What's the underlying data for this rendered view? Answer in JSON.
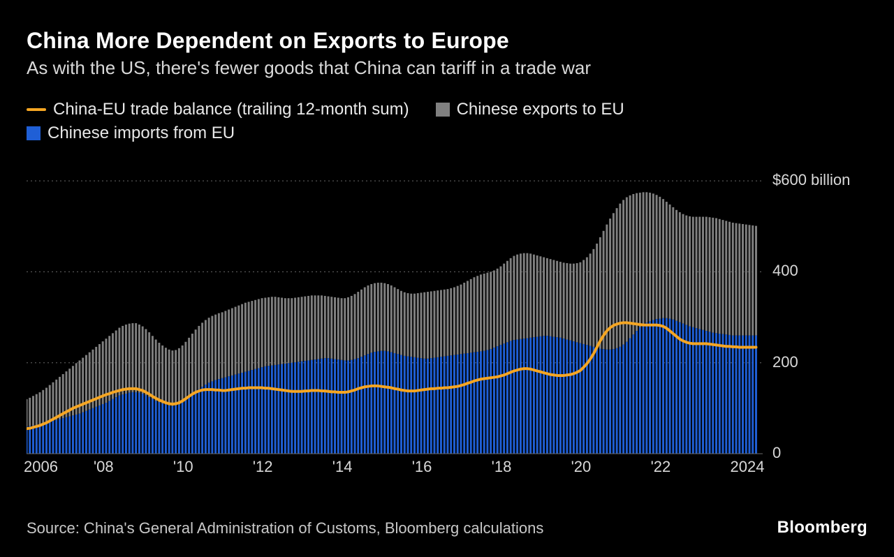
{
  "title": "China More Dependent on Exports to Europe",
  "subtitle": "As with the US, there's fewer goods that China can tariff in a trade war",
  "legend": {
    "balance": "China-EU trade balance (trailing 12-month sum)",
    "exports": "Chinese exports to EU",
    "imports": "Chinese imports from EU"
  },
  "source": "Source: China's General Administration of Customs, Bloomberg calculations",
  "brand": "Bloomberg",
  "chart": {
    "type": "stacked-bar-plus-line",
    "background_color": "#000000",
    "grid_color": "#6a6a6a",
    "grid_dash": "2,4",
    "axis_text_color": "#d9d9d9",
    "font_size_axis": 22,
    "x": {
      "min": 2006.0,
      "max": 2024.5,
      "tick_labels": [
        "2006",
        "'08",
        "'10",
        "'12",
        "'14",
        "'16",
        "'18",
        "'20",
        "'22",
        "2024"
      ],
      "tick_values": [
        2006,
        2008,
        2010,
        2012,
        2014,
        2016,
        2018,
        2020,
        2022,
        2024
      ]
    },
    "y": {
      "min": 0,
      "max": 660,
      "ticks": [
        0,
        200,
        400,
        600
      ],
      "tick_labels": [
        "0",
        "200",
        "400",
        "$600 billion"
      ]
    },
    "series": {
      "imports": {
        "color": "#1f5fd6",
        "step": 0.083333,
        "values": [
          60,
          61,
          62,
          63,
          64,
          66,
          68,
          70,
          72,
          74,
          76,
          78,
          80,
          82,
          84,
          86,
          88,
          91,
          94,
          97,
          100,
          103,
          106,
          109,
          112,
          116,
          120,
          124,
          128,
          130,
          132,
          134,
          135,
          135,
          134,
          132,
          128,
          124,
          120,
          116,
          113,
          110,
          108,
          106,
          105,
          106,
          108,
          112,
          118,
          124,
          130,
          136,
          142,
          147,
          152,
          156,
          159,
          162,
          164,
          166,
          168,
          170,
          172,
          174,
          176,
          178,
          180,
          182,
          184,
          186,
          188,
          190,
          192,
          193,
          194,
          195,
          196,
          197,
          198,
          199,
          200,
          201,
          202,
          203,
          204,
          205,
          206,
          207,
          208,
          209,
          210,
          210,
          209,
          208,
          207,
          206,
          205,
          205,
          206,
          208,
          210,
          213,
          216,
          219,
          222,
          224,
          225,
          226,
          226,
          225,
          223,
          221,
          219,
          217,
          215,
          214,
          213,
          212,
          211,
          210,
          209,
          209,
          210,
          211,
          212,
          213,
          214,
          215,
          216,
          217,
          218,
          219,
          220,
          221,
          222,
          223,
          224,
          225,
          226,
          228,
          230,
          233,
          236,
          239,
          242,
          245,
          248,
          250,
          251,
          252,
          253,
          254,
          255,
          256,
          257,
          258,
          259,
          259,
          258,
          257,
          256,
          255,
          253,
          251,
          249,
          247,
          245,
          243,
          241,
          239,
          237,
          235,
          233,
          231,
          230,
          229,
          229,
          230,
          232,
          235,
          240,
          246,
          254,
          262,
          270,
          278,
          284,
          288,
          291,
          294,
          296,
          297,
          298,
          298,
          297,
          295,
          292,
          289,
          286,
          283,
          280,
          278,
          276,
          274,
          272,
          270,
          268,
          266,
          265,
          264,
          263,
          262,
          261,
          260,
          260,
          260,
          260,
          260,
          260,
          260,
          260
        ]
      },
      "exports_top": {
        "color": "#808080",
        "step": 0.083333,
        "values": [
          120,
          123,
          127,
          131,
          135,
          140,
          145,
          151,
          157,
          163,
          169,
          175,
          181,
          187,
          193,
          199,
          205,
          211,
          217,
          223,
          229,
          235,
          241,
          247,
          253,
          259,
          265,
          271,
          277,
          281,
          284,
          286,
          287,
          287,
          284,
          280,
          274,
          267,
          259,
          251,
          244,
          238,
          233,
          229,
          227,
          228,
          232,
          238,
          246,
          255,
          264,
          273,
          281,
          288,
          294,
          299,
          303,
          306,
          309,
          311,
          314,
          317,
          320,
          323,
          326,
          329,
          332,
          334,
          336,
          338,
          340,
          342,
          343,
          344,
          345,
          345,
          344,
          343,
          342,
          342,
          342,
          343,
          344,
          345,
          346,
          347,
          348,
          348,
          348,
          348,
          347,
          346,
          345,
          344,
          343,
          342,
          342,
          344,
          347,
          351,
          356,
          361,
          366,
          370,
          373,
          375,
          376,
          376,
          375,
          373,
          370,
          366,
          362,
          358,
          355,
          353,
          352,
          352,
          353,
          354,
          355,
          356,
          357,
          358,
          359,
          360,
          361,
          362,
          364,
          366,
          369,
          372,
          376,
          380,
          384,
          388,
          391,
          394,
          396,
          398,
          400,
          403,
          407,
          412,
          418,
          424,
          430,
          435,
          438,
          440,
          441,
          441,
          440,
          438,
          436,
          434,
          432,
          430,
          428,
          426,
          424,
          422,
          420,
          419,
          418,
          418,
          419,
          421,
          426,
          432,
          440,
          450,
          462,
          476,
          490,
          504,
          517,
          529,
          540,
          550,
          558,
          564,
          568,
          571,
          573,
          574,
          575,
          575,
          574,
          572,
          569,
          565,
          560,
          554,
          548,
          542,
          536,
          531,
          527,
          524,
          522,
          521,
          521,
          521,
          521,
          521,
          520,
          519,
          518,
          516,
          514,
          512,
          510,
          508,
          507,
          506,
          505,
          504,
          503,
          502,
          501
        ]
      },
      "balance_line": {
        "color": "#f5a623",
        "width": 4,
        "step": 0.083333,
        "values": [
          55,
          56,
          58,
          60,
          62,
          65,
          68,
          72,
          76,
          80,
          84,
          88,
          92,
          96,
          100,
          103,
          106,
          109,
          112,
          115,
          118,
          121,
          124,
          127,
          130,
          132,
          135,
          137,
          139,
          141,
          142,
          143,
          143,
          143,
          141,
          139,
          135,
          131,
          126,
          122,
          118,
          115,
          112,
          110,
          109,
          110,
          112,
          116,
          121,
          126,
          131,
          135,
          138,
          140,
          141,
          141,
          141,
          140,
          140,
          139,
          139,
          140,
          141,
          142,
          143,
          144,
          144,
          145,
          145,
          145,
          145,
          145,
          144,
          144,
          143,
          142,
          141,
          140,
          139,
          138,
          137,
          137,
          137,
          137,
          138,
          138,
          139,
          139,
          139,
          138,
          138,
          137,
          136,
          136,
          135,
          135,
          135,
          136,
          138,
          140,
          143,
          145,
          147,
          148,
          149,
          149,
          149,
          148,
          147,
          146,
          145,
          143,
          142,
          140,
          139,
          138,
          138,
          138,
          139,
          140,
          141,
          142,
          143,
          143,
          144,
          144,
          145,
          145,
          146,
          147,
          148,
          150,
          152,
          155,
          157,
          160,
          162,
          164,
          165,
          166,
          167,
          168,
          169,
          171,
          173,
          176,
          179,
          182,
          184,
          186,
          187,
          187,
          186,
          184,
          182,
          180,
          178,
          176,
          174,
          173,
          172,
          172,
          172,
          173,
          174,
          176,
          179,
          183,
          190,
          198,
          208,
          220,
          234,
          248,
          260,
          270,
          277,
          282,
          285,
          287,
          288,
          288,
          287,
          286,
          285,
          284,
          283,
          283,
          283,
          283,
          283,
          282,
          280,
          276,
          270,
          264,
          258,
          252,
          248,
          245,
          243,
          242,
          242,
          242,
          242,
          242,
          241,
          240,
          239,
          238,
          237,
          236,
          236,
          235,
          235,
          234,
          234,
          234,
          234,
          234,
          234
        ]
      }
    }
  }
}
